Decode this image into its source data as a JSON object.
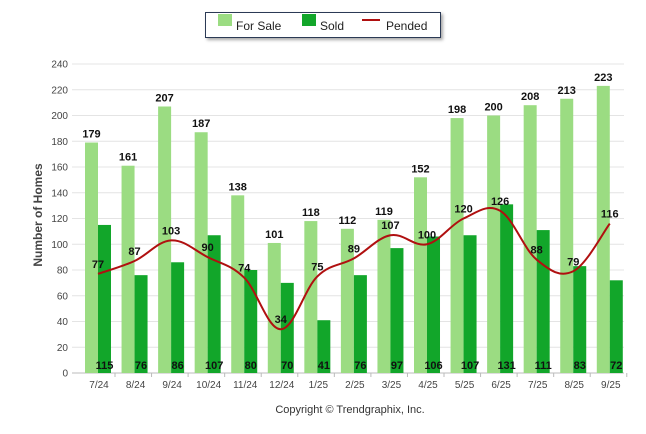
{
  "chart_data": {
    "type": "bar",
    "title": "",
    "xlabel": "",
    "ylabel": "Number of Homes",
    "ylim": [
      0,
      240
    ],
    "yticks": [
      0,
      20,
      40,
      60,
      80,
      100,
      120,
      140,
      160,
      180,
      200,
      220,
      240
    ],
    "categories": [
      "7/24",
      "8/24",
      "9/24",
      "10/24",
      "11/24",
      "12/24",
      "1/25",
      "2/25",
      "3/25",
      "4/25",
      "5/25",
      "6/25",
      "7/25",
      "8/25",
      "9/25"
    ],
    "series": [
      {
        "name": "For Sale",
        "kind": "bar",
        "color": "#9bdc82",
        "values": [
          179,
          161,
          207,
          187,
          138,
          101,
          118,
          112,
          119,
          152,
          198,
          200,
          208,
          213,
          223
        ]
      },
      {
        "name": "Sold",
        "kind": "bar",
        "color": "#12a62a",
        "values": [
          115,
          76,
          86,
          107,
          80,
          70,
          41,
          76,
          97,
          106,
          107,
          131,
          111,
          83,
          72
        ]
      },
      {
        "name": "Pended",
        "kind": "line",
        "color": "#b01010",
        "values": [
          77,
          87,
          103,
          90,
          74,
          34,
          75,
          89,
          107,
          100,
          120,
          126,
          88,
          79,
          116
        ]
      }
    ],
    "legend": "top-center",
    "grid": true
  },
  "footer": {
    "copyright": "Copyright © Trendgraphix, Inc."
  }
}
